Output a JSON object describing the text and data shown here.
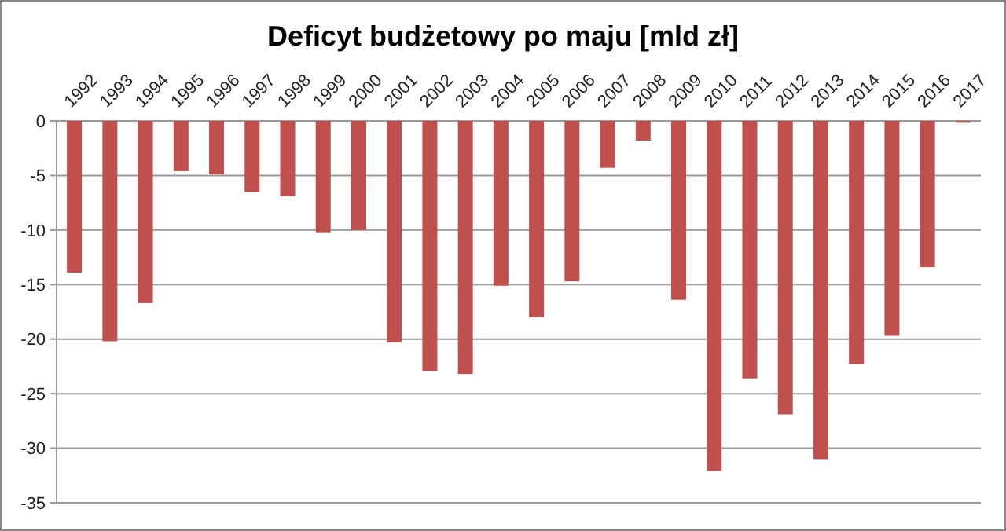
{
  "chart_data": {
    "type": "bar",
    "title": "Deficyt budżetowy po maju [mld zł]",
    "categories": [
      "1992",
      "1993",
      "1994",
      "1995",
      "1996",
      "1997",
      "1998",
      "1999",
      "2000",
      "2001",
      "2002",
      "2003",
      "2004",
      "2005",
      "2006",
      "2007",
      "2008",
      "2009",
      "2010",
      "2011",
      "2012",
      "2013",
      "2014",
      "2015",
      "2016",
      "2017"
    ],
    "values": [
      -13.9,
      -20.2,
      -16.7,
      -4.6,
      -4.9,
      -6.5,
      -6.9,
      -10.2,
      -10,
      -20.3,
      -22.9,
      -23.2,
      -15.1,
      -18,
      -14.7,
      -4.3,
      -1.8,
      -16.4,
      -32.1,
      -23.6,
      -26.9,
      -31,
      -22.3,
      -19.7,
      -13.4,
      -0.1
    ],
    "color": "#c0504d",
    "ylim": [
      -35,
      0
    ],
    "yticks": [
      0,
      -5,
      -10,
      -15,
      -20,
      -25,
      -30,
      -35
    ],
    "grid": "y"
  }
}
